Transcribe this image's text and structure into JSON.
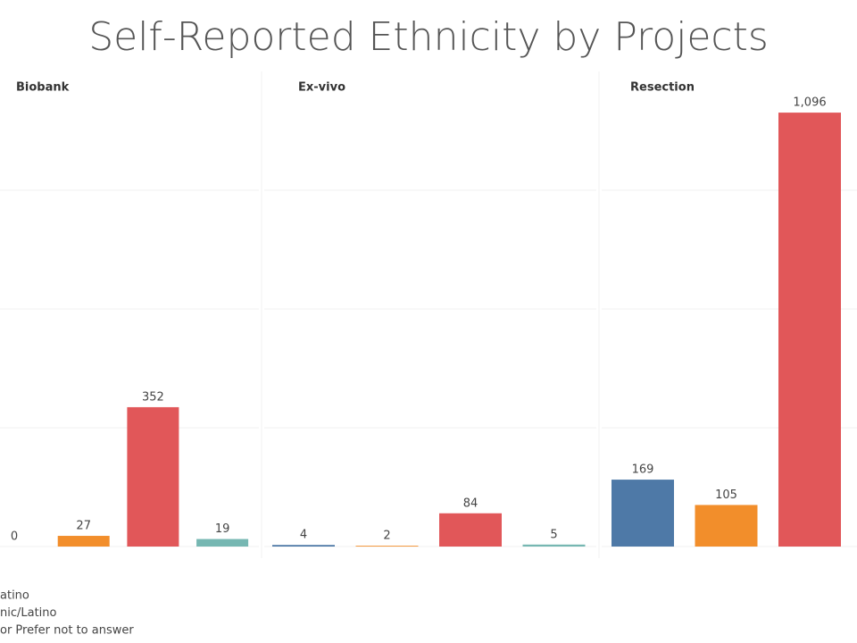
{
  "title": "Self-Reported Ethnicity by Projects",
  "chart_data": [
    {
      "type": "bar",
      "title": "Biobank",
      "categories": [
        null,
        null,
        null,
        null
      ],
      "values": [
        0,
        27,
        352,
        19
      ],
      "colors": [
        "#4e79a7",
        "#f28e2b",
        "#e15759",
        "#76b7b2"
      ],
      "ylim": [
        0,
        1200
      ],
      "yticks": [
        0,
        300,
        600,
        900
      ],
      "grid": true
    },
    {
      "type": "bar",
      "title": "Ex-vivo",
      "categories": [
        null,
        null,
        null,
        null
      ],
      "values": [
        4,
        2,
        84,
        5
      ],
      "colors": [
        "#4e79a7",
        "#f28e2b",
        "#e15759",
        "#76b7b2"
      ],
      "ylim": [
        0,
        1200
      ],
      "yticks": [
        0,
        300,
        600,
        900
      ],
      "grid": true
    },
    {
      "type": "bar",
      "title": "Resection",
      "categories": [
        null,
        null,
        null
      ],
      "values": [
        169,
        105,
        1096
      ],
      "value_labels": [
        "169",
        "105",
        "1,096"
      ],
      "colors": [
        "#4e79a7",
        "#f28e2b",
        "#e15759"
      ],
      "ylim": [
        0,
        1200
      ],
      "yticks": [
        0,
        300,
        600,
        900
      ],
      "grid": true
    }
  ],
  "legend": [
    "atino",
    "nic/Latino",
    "or Prefer not to answer"
  ]
}
